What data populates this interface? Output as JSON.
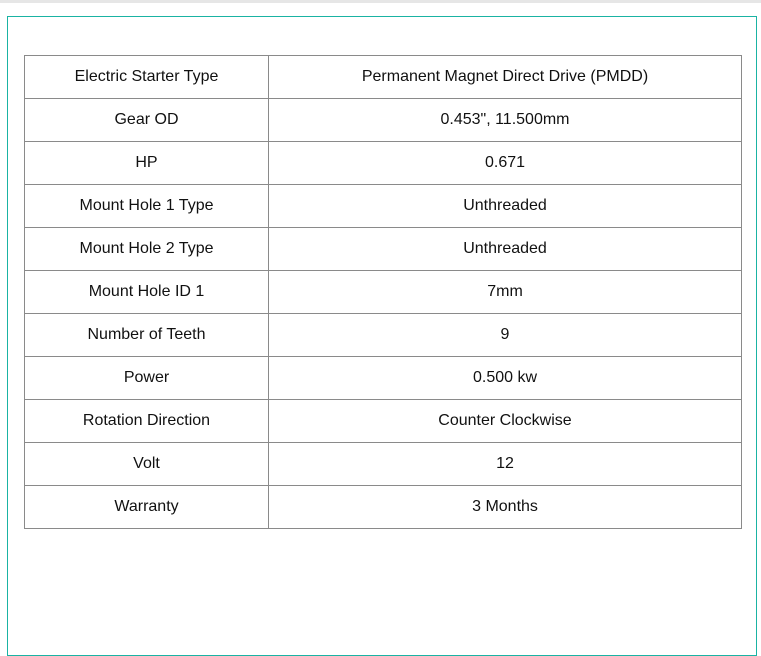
{
  "specs": [
    {
      "label": "Electric Starter Type",
      "value": "Permanent Magnet Direct Drive (PMDD)"
    },
    {
      "label": "Gear OD",
      "value": "0.453\", 11.500mm"
    },
    {
      "label": "HP",
      "value": "0.671"
    },
    {
      "label": "Mount Hole 1 Type",
      "value": "Unthreaded"
    },
    {
      "label": "Mount Hole 2 Type",
      "value": "Unthreaded"
    },
    {
      "label": "Mount Hole ID 1",
      "value": "7mm"
    },
    {
      "label": "Number of Teeth",
      "value": "9"
    },
    {
      "label": "Power",
      "value": "0.500 kw"
    },
    {
      "label": "Rotation Direction",
      "value": "Counter Clockwise"
    },
    {
      "label": "Volt",
      "value": "12"
    },
    {
      "label": "Warranty",
      "value": "3 Months"
    }
  ],
  "colors": {
    "panel_border": "#1ab3a3",
    "table_border": "#8a8a8a"
  }
}
